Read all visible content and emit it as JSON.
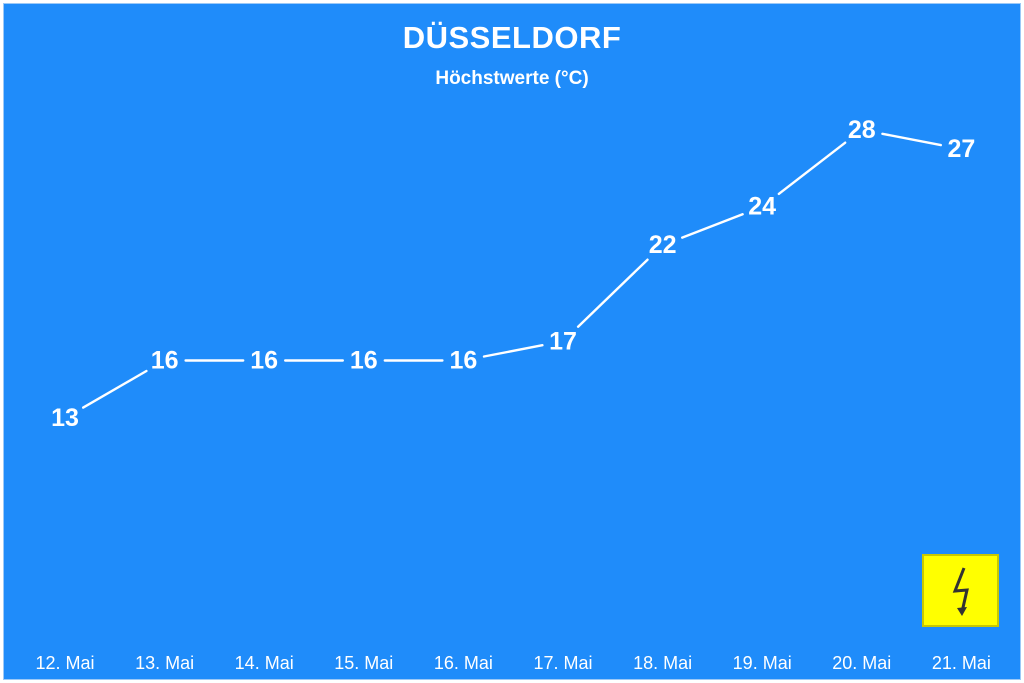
{
  "chart_data": {
    "type": "line",
    "title": "DÜSSELDORF",
    "subtitle": "Höchstwerte (°C)",
    "categories": [
      "12. Mai",
      "13. Mai",
      "14. Mai",
      "15. Mai",
      "16. Mai",
      "17. Mai",
      "18. Mai",
      "19. Mai",
      "20. Mai",
      "21. Mai"
    ],
    "values": [
      13,
      16,
      16,
      16,
      16,
      17,
      22,
      24,
      28,
      27
    ],
    "data_labels": [
      "13",
      "16",
      "16",
      "16",
      "16",
      "17",
      "22",
      "24",
      "28",
      "27"
    ],
    "ylim": [
      0,
      28
    ],
    "grid": false,
    "legend": "none",
    "xlabel": "",
    "ylabel": ""
  },
  "warning_icon": "lightning-warning-icon",
  "colors": {
    "background": "#1f8cfa",
    "line": "#ffffff",
    "text": "#ffffff",
    "warning": "#ffff00"
  }
}
